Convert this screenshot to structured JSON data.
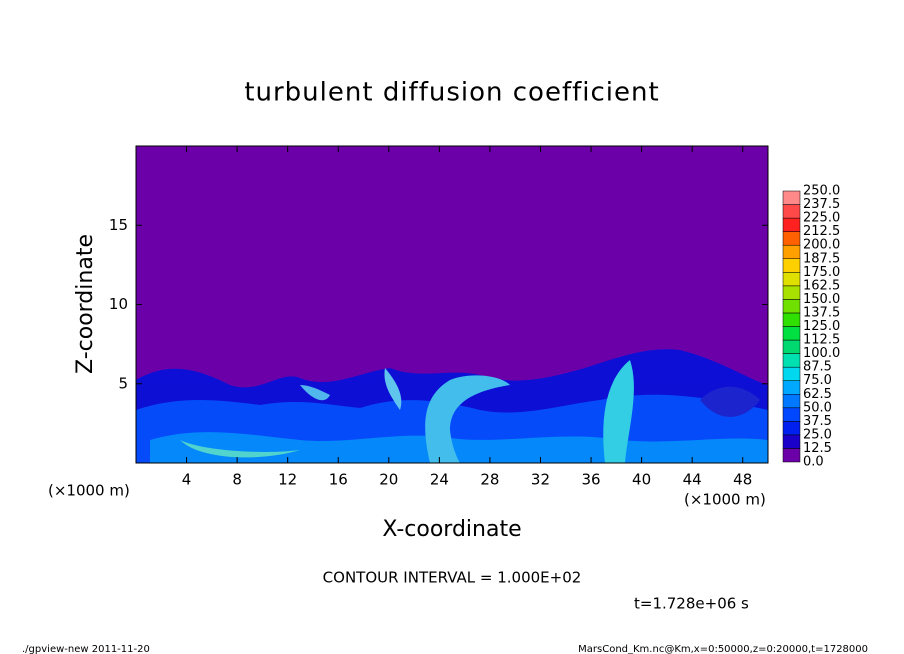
{
  "chart_data": {
    "type": "contour",
    "title": "turbulent diffusion coefficient",
    "xlabel": "X-coordinate",
    "ylabel": "Z-coordinate",
    "x_unit": "(×1000 m)",
    "xlim": [
      0,
      50
    ],
    "xticks": [
      4,
      8,
      12,
      16,
      20,
      24,
      28,
      32,
      36,
      40,
      44,
      48
    ],
    "ylim": [
      0,
      20
    ],
    "yticks": [
      5,
      10,
      15
    ],
    "levels": [
      {
        "value": 0,
        "label": "0.0"
      },
      {
        "value": 12.5,
        "label": "12.5"
      },
      {
        "value": 25,
        "label": "25.0"
      },
      {
        "value": 37.5,
        "label": "37.5"
      },
      {
        "value": 50,
        "label": "50.0"
      },
      {
        "value": 62.5,
        "label": "62.5"
      },
      {
        "value": 75,
        "label": "75.0"
      },
      {
        "value": 87.5,
        "label": "87.5"
      },
      {
        "value": 100,
        "label": "100.0"
      },
      {
        "value": 112.5,
        "label": "112.5"
      },
      {
        "value": 125,
        "label": "125.0"
      },
      {
        "value": 137.5,
        "label": "137.5"
      },
      {
        "value": 150,
        "label": "150.0"
      },
      {
        "value": 162.5,
        "label": "162.5"
      },
      {
        "value": 175,
        "label": "175.0"
      },
      {
        "value": 187.5,
        "label": "187.5"
      },
      {
        "value": 200,
        "label": "200.0"
      },
      {
        "value": 212.5,
        "label": "212.5"
      },
      {
        "value": 225,
        "label": "225.0"
      },
      {
        "value": 237.5,
        "label": "237.5"
      },
      {
        "value": 250,
        "label": "250.0"
      }
    ],
    "colors": [
      "#6c00a8",
      "#1a00c8",
      "#0020f0",
      "#0048ff",
      "#0078ff",
      "#00a8ff",
      "#00d8f0",
      "#00e0b0",
      "#00d870",
      "#00e040",
      "#30e000",
      "#70e000",
      "#a8e000",
      "#e0e000",
      "#ffd000",
      "#ffa000",
      "#ff6000",
      "#ff2020",
      "#ff4848",
      "#ff8888"
    ],
    "contour_interval": "CONTOUR INTERVAL = 1.000E+02",
    "time": "t=1.728e+06 s",
    "footer_left": "./gpview-new   2011-11-20",
    "footer_right": "MarsCond_Km.nc@Km,x=0:50000,z=0:20000,t=1728000"
  }
}
